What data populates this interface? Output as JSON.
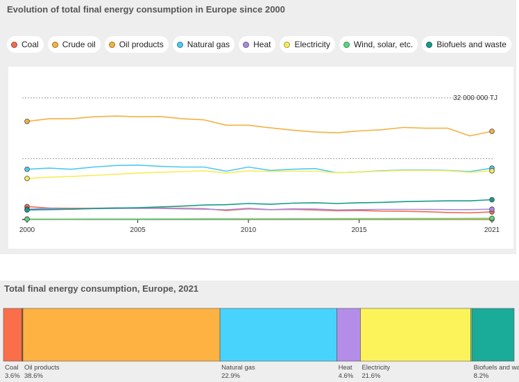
{
  "charts": {
    "line": {
      "title": "Evolution of total final energy consumption in Europe since 2000",
      "gridline_label": "32 000 000 TJ"
    },
    "stacked": {
      "title": "Total final energy consumption, Europe, 2021"
    }
  },
  "chart_data": [
    {
      "type": "line",
      "title": "Evolution of total final energy consumption in Europe since 2000",
      "x": [
        2000,
        2001,
        2002,
        2003,
        2004,
        2005,
        2006,
        2007,
        2008,
        2009,
        2010,
        2011,
        2012,
        2013,
        2014,
        2015,
        2016,
        2017,
        2018,
        2019,
        2020,
        2021
      ],
      "x_ticks": [
        "2000",
        "2005",
        "2010",
        "2015",
        "2021"
      ],
      "ylim": [
        0,
        38000000
      ],
      "y_gridlines": [
        16000000,
        32000000
      ],
      "y_gridline_labels": [
        "",
        "32 000 000 TJ"
      ],
      "grid": true,
      "legend": "top",
      "series": [
        {
          "name": "Coal",
          "color": "#f26b51",
          "values": [
            3400000,
            3000000,
            2950000,
            2950000,
            3050000,
            2950000,
            3000000,
            2950000,
            2850000,
            2350000,
            2800000,
            2550000,
            2650000,
            2500000,
            2300000,
            2350000,
            2200000,
            2150000,
            2050000,
            1850000,
            1750000,
            2000000
          ]
        },
        {
          "name": "Crude oil",
          "color": "#f5b041",
          "values": [
            100000,
            100000,
            100000,
            100000,
            100000,
            100000,
            100000,
            100000,
            100000,
            100000,
            100000,
            100000,
            100000,
            100000,
            100000,
            100000,
            100000,
            100000,
            100000,
            100000,
            100000,
            100000
          ]
        },
        {
          "name": "Oil products",
          "color": "#f5b041",
          "values": [
            25800000,
            26500000,
            26500000,
            27000000,
            27200000,
            27000000,
            27100000,
            26500000,
            26200000,
            24800000,
            24800000,
            24100000,
            23500000,
            23000000,
            22800000,
            23300000,
            23600000,
            24200000,
            24000000,
            24000000,
            22000000,
            23200000
          ]
        },
        {
          "name": "Natural gas",
          "color": "#4dc9f0",
          "values": [
            13200000,
            13500000,
            13200000,
            13800000,
            14200000,
            14300000,
            14000000,
            13800000,
            13800000,
            12700000,
            13800000,
            12900000,
            13200000,
            13400000,
            12300000,
            12500000,
            12800000,
            13000000,
            13000000,
            12900000,
            12600000,
            13500000
          ]
        },
        {
          "name": "Heat",
          "color": "#a78bde",
          "values": [
            2700000,
            2900000,
            2700000,
            2850000,
            2900000,
            2950000,
            2900000,
            2800000,
            2700000,
            2550000,
            2950000,
            2600000,
            2800000,
            2750000,
            2500000,
            2600000,
            2650000,
            2650000,
            2650000,
            2600000,
            2600000,
            2700000
          ]
        },
        {
          "name": "Electricity",
          "color": "#f6ec5a",
          "values": [
            10800000,
            11100000,
            11300000,
            11600000,
            11900000,
            12200000,
            12400000,
            12600000,
            12800000,
            12200000,
            12800000,
            12600000,
            12700000,
            12700000,
            12300000,
            12500000,
            12700000,
            12900000,
            12900000,
            12800000,
            12400000,
            12800000
          ]
        },
        {
          "name": "Wind, solar, etc.",
          "color": "#5ed47f",
          "values": [
            100000,
            100000,
            100000,
            120000,
            120000,
            130000,
            140000,
            150000,
            160000,
            170000,
            180000,
            190000,
            200000,
            210000,
            220000,
            230000,
            240000,
            250000,
            260000,
            280000,
            290000,
            310000
          ]
        },
        {
          "name": "Biofuels and waste",
          "color": "#179a8c",
          "values": [
            2500000,
            2600000,
            2700000,
            2900000,
            3000000,
            3100000,
            3300000,
            3500000,
            3800000,
            3900000,
            4200000,
            4000000,
            4300000,
            4400000,
            4200000,
            4400000,
            4500000,
            4700000,
            4800000,
            4900000,
            4900000,
            5200000
          ]
        }
      ]
    },
    {
      "type": "bar",
      "orientation": "horizontal-stacked",
      "title": "Total final energy consumption, Europe, 2021",
      "unit": "%",
      "segments": [
        {
          "name": "Coal",
          "value": 3.6,
          "label": "Coal",
          "value_label": "3.6%",
          "color": "#fb6e4a"
        },
        {
          "name": "Crude oil",
          "value": 0.2,
          "label": "",
          "value_label": "",
          "color": "#7a4a16"
        },
        {
          "name": "Oil products",
          "value": 38.6,
          "label": "Oil products",
          "value_label": "38.6%",
          "color": "#fdb241"
        },
        {
          "name": "Natural gas",
          "value": 22.9,
          "label": "Natural gas",
          "value_label": "22.9%",
          "color": "#48d3fd"
        },
        {
          "name": "Heat",
          "value": 4.6,
          "label": "Heat",
          "value_label": "4.6%",
          "color": "#b38de8"
        },
        {
          "name": "Electricity",
          "value": 21.6,
          "label": "Electricity",
          "value_label": "21.6%",
          "color": "#fcf35a"
        },
        {
          "name": "Wind, solar, etc.",
          "value": 0.3,
          "label": "",
          "value_label": "",
          "color": "#64d47d"
        },
        {
          "name": "Biofuels and waste",
          "value": 8.2,
          "label": "Biofuels and waste",
          "value_label": "8.2%",
          "color": "#1aab99"
        }
      ]
    }
  ]
}
